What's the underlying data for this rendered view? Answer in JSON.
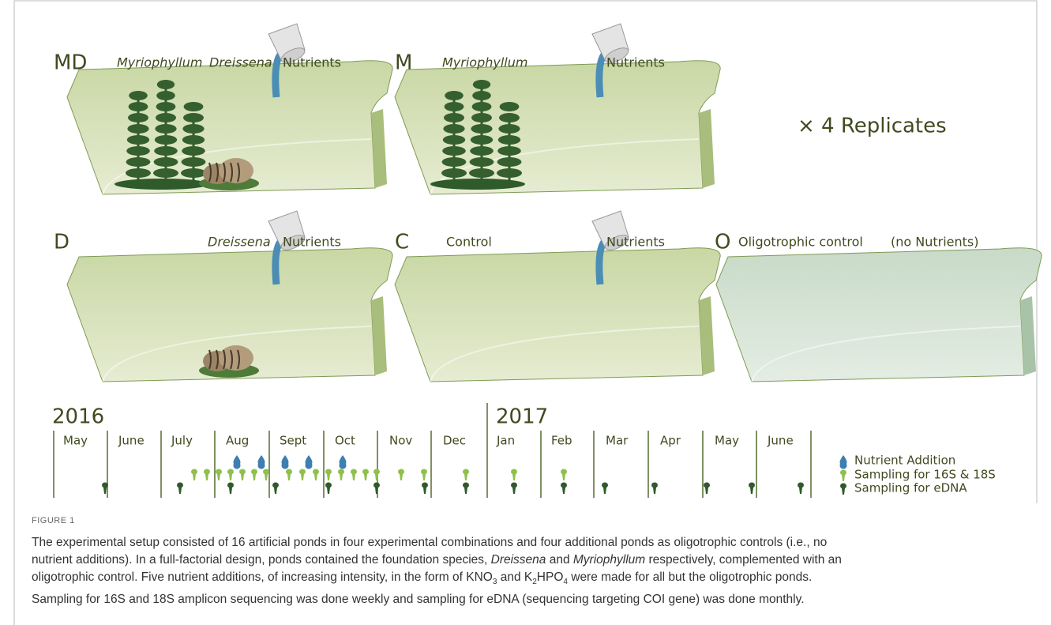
{
  "ponds": [
    {
      "code": "MD",
      "species": [
        "Myriophyllum",
        "Dreissena"
      ],
      "nutrients": "Nutrients"
    },
    {
      "code": "M",
      "species": [
        "Myriophyllum"
      ],
      "nutrients": "Nutrients"
    },
    {
      "code": "D",
      "species": [
        "Dreissena"
      ],
      "nutrients": "Nutrients"
    },
    {
      "code": "C",
      "label": "Control",
      "nutrients": "Nutrients"
    },
    {
      "code": "O",
      "label": "Oligotrophic control",
      "note": "(no Nutrients)"
    }
  ],
  "replicates": "× 4 Replicates",
  "timeline": {
    "years": [
      "2016",
      "2017"
    ],
    "months": [
      "May",
      "June",
      "July",
      "Aug",
      "Sept",
      "Oct",
      "Nov",
      "Dec",
      "Jan",
      "Feb",
      "Mar",
      "Apr",
      "May",
      "June"
    ],
    "legend": [
      "Nutrient Addition",
      "Sampling for 16S & 18S",
      "Sampling for eDNA"
    ]
  },
  "caption": {
    "label": "FIGURE 1",
    "lines": [
      [
        {
          "text": "The experimental setup consisted of 16 artificial ponds in four experimental combinations and four additional ponds as oligotrophic controls (i.e., no"
        }
      ],
      [
        {
          "text": "nutrient additions). In a full-factorial design, ponds contained the foundation species, "
        },
        {
          "text": "Dreissena",
          "style": "italic"
        },
        {
          "text": " and "
        },
        {
          "text": "Myriophyllum",
          "style": "italic"
        },
        {
          "text": " respectively, complemented with an"
        }
      ],
      [
        {
          "text": "oligotrophic control. Five nutrient additions, of increasing intensity, in the form of KNO"
        },
        {
          "text": "3",
          "style": "sub"
        },
        {
          "text": " and K"
        },
        {
          "text": "2",
          "style": "sub"
        },
        {
          "text": "HPO"
        },
        {
          "text": "4",
          "style": "sub"
        },
        {
          "text": " were made for all but the oligotrophic ponds."
        }
      ],
      [
        {
          "text": "Sampling for 16S and 18S amplicon sequencing was done weekly and sampling for eDNA (sequencing targeting COI gene) was done monthly."
        }
      ]
    ]
  }
}
